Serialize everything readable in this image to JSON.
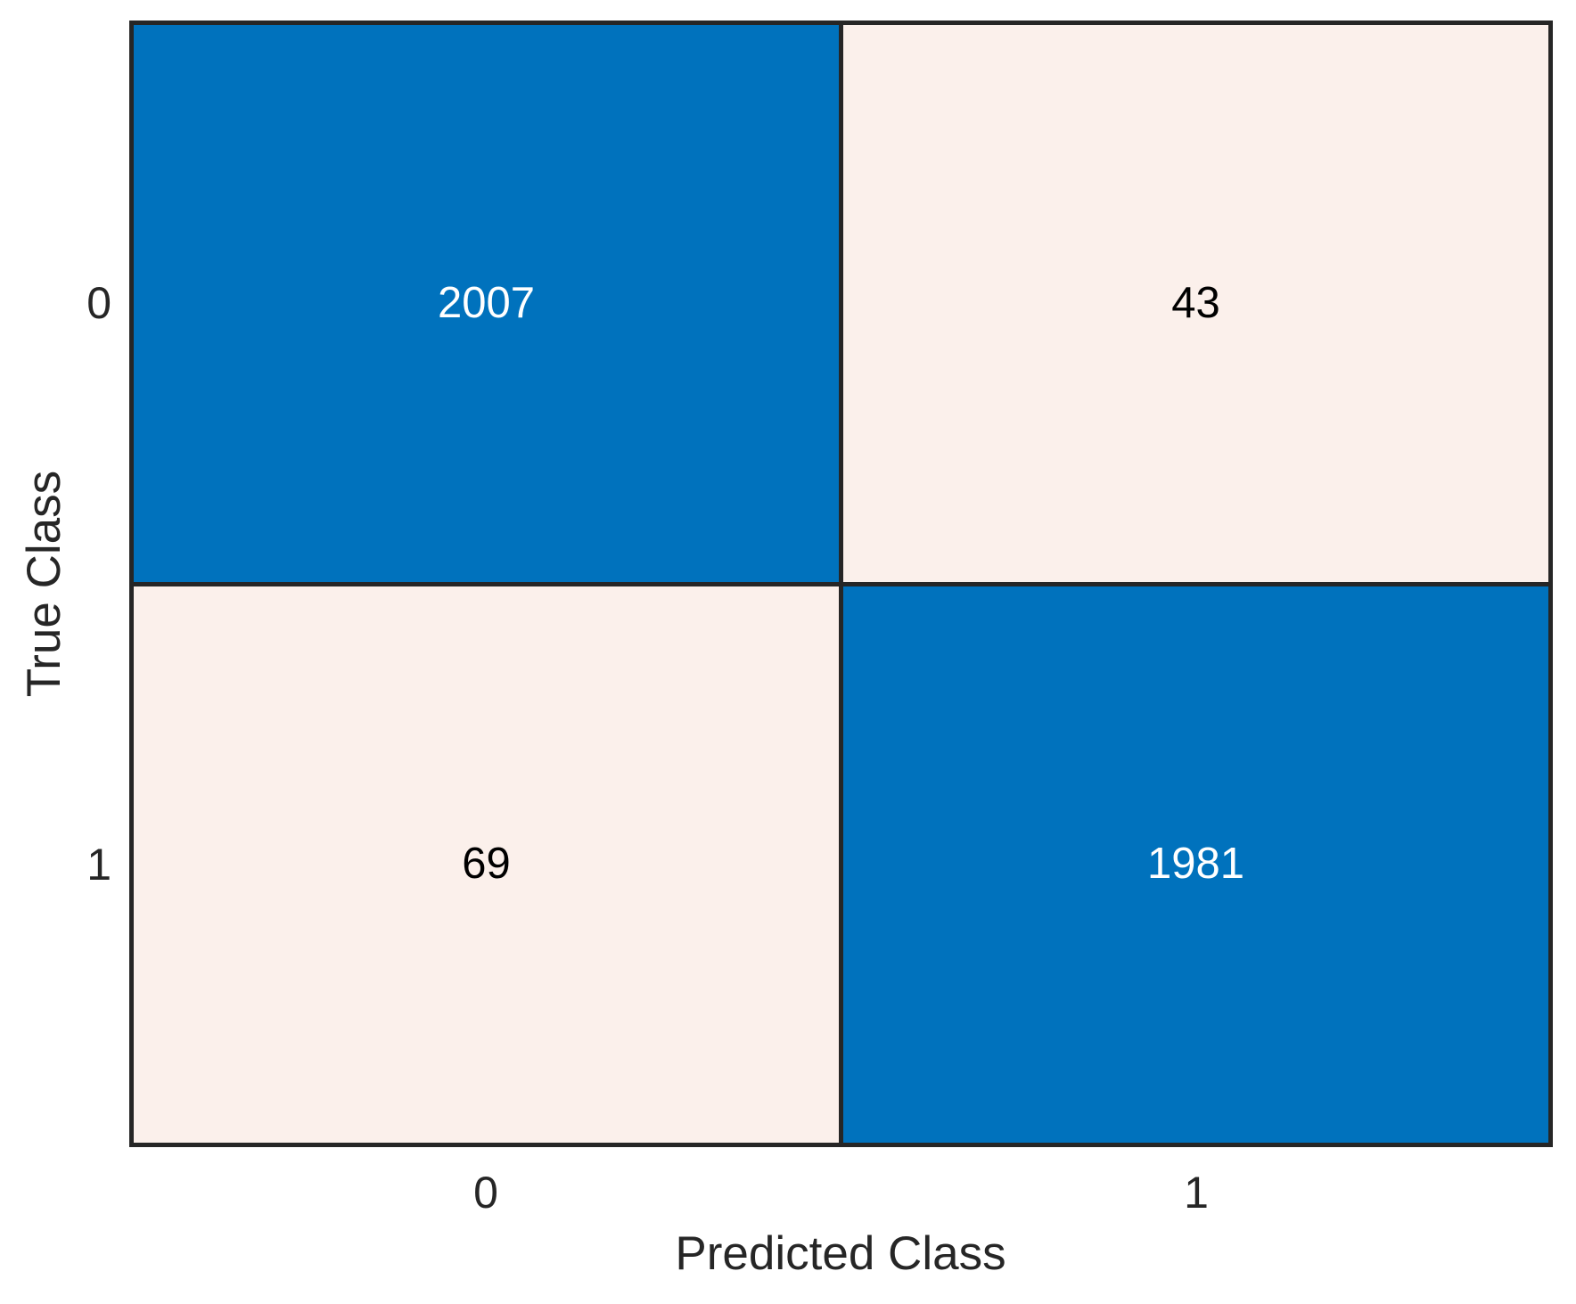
{
  "chart_data": {
    "type": "heatmap",
    "chart_kind": "confusion-matrix",
    "title": "",
    "xlabel": "Predicted Class",
    "ylabel": "True Class",
    "x_categories": [
      "0",
      "1"
    ],
    "y_categories": [
      "0",
      "1"
    ],
    "matrix": [
      [
        2007,
        43
      ],
      [
        69,
        1981
      ]
    ],
    "legend_position": "none",
    "grid": "cell-borders",
    "colors": {
      "diagonal_cell": "#0072BD",
      "off_diagonal_cell": "#FBF0EB",
      "grid_line": "#262626",
      "cell_text_on_blue": "#FFFFFF",
      "cell_text_on_light": "#000000",
      "axis_text": "#262626",
      "figure_background": "#FFFFFF"
    }
  },
  "axes": {
    "xlabel": "Predicted Class",
    "ylabel": "True Class",
    "xticks": [
      "0",
      "1"
    ],
    "yticks": [
      "0",
      "1"
    ]
  },
  "cells": [
    {
      "value": "2007",
      "bg": "#0072BD",
      "fg": "#FFFFFF",
      "row": "0",
      "col": "0"
    },
    {
      "value": "43",
      "bg": "#FBF0EB",
      "fg": "#000000",
      "row": "0",
      "col": "1"
    },
    {
      "value": "69",
      "bg": "#FBF0EB",
      "fg": "#000000",
      "row": "1",
      "col": "0"
    },
    {
      "value": "1981",
      "bg": "#0072BD",
      "fg": "#FFFFFF",
      "row": "1",
      "col": "1"
    }
  ]
}
